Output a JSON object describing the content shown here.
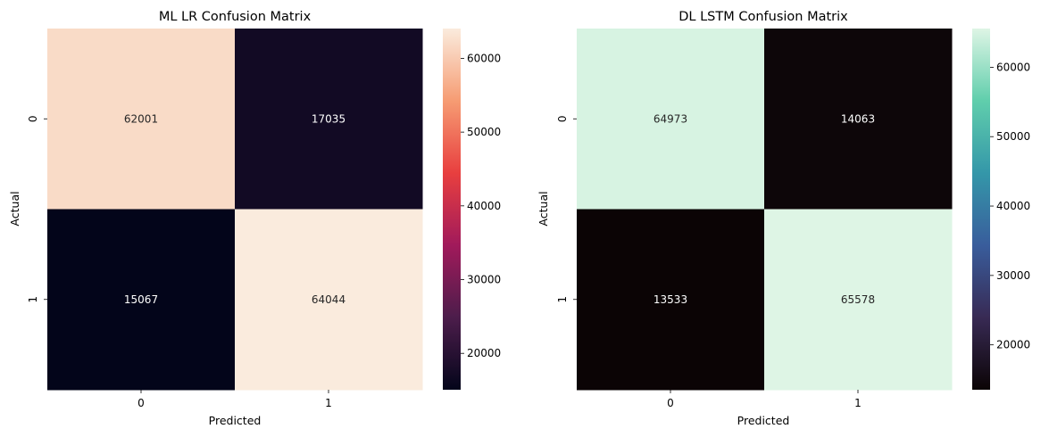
{
  "chart_data": [
    {
      "type": "heatmap",
      "title": "ML LR Confusion Matrix",
      "xlabel": "Predicted",
      "ylabel": "Actual",
      "x_categories": [
        "0",
        "1"
      ],
      "y_categories": [
        "0",
        "1"
      ],
      "values": [
        [
          62001,
          17035
        ],
        [
          15067,
          64044
        ]
      ],
      "colormap": "rocket",
      "colorbar": {
        "range": [
          15067,
          64044
        ],
        "ticks": [
          20000,
          30000,
          40000,
          50000,
          60000
        ],
        "tick_labels": [
          "20000",
          "30000",
          "40000",
          "50000",
          "60000"
        ],
        "colors": [
          "#03051a",
          "#4c1d4b",
          "#a11a5b",
          "#e83f3f",
          "#f69c73",
          "#faebdd"
        ]
      },
      "grid": false
    },
    {
      "type": "heatmap",
      "title": "DL LSTM Confusion Matrix",
      "xlabel": "Predicted",
      "ylabel": "Actual",
      "x_categories": [
        "0",
        "1"
      ],
      "y_categories": [
        "0",
        "1"
      ],
      "values": [
        [
          64973,
          14063
        ],
        [
          13533,
          65578
        ]
      ],
      "colormap": "mako",
      "colorbar": {
        "range": [
          13533,
          65578
        ],
        "ticks": [
          20000,
          30000,
          40000,
          50000,
          60000
        ],
        "tick_labels": [
          "20000",
          "30000",
          "40000",
          "50000",
          "60000"
        ],
        "colors": [
          "#0b0405",
          "#382a54",
          "#395d9c",
          "#3497a9",
          "#60ceac",
          "#def5e5"
        ]
      },
      "grid": false
    }
  ]
}
